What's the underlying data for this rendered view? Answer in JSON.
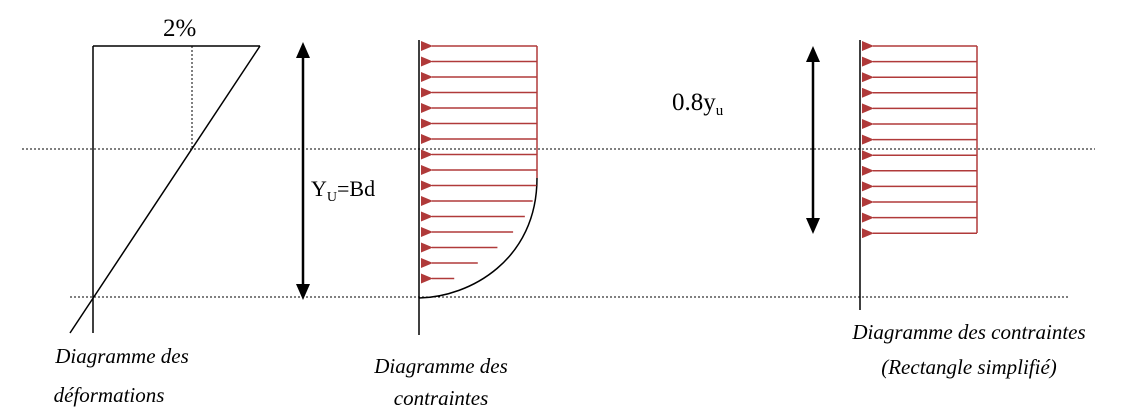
{
  "strain_diagram": {
    "top_label": "2%",
    "caption_line1": "Diagramme des",
    "caption_line2": "déformations"
  },
  "depth_arrow": {
    "label_main": "Y",
    "label_sub": "U",
    "label_rest": "=Bd"
  },
  "stress_diagram": {
    "caption_line1": "Diagramme des",
    "caption_line2": "contraintes"
  },
  "rect_diagram": {
    "label_main": "0.8y",
    "label_sub": "u",
    "caption_line1": "Diagramme des contraintes",
    "caption_line2": "(Rectangle simplifié)"
  },
  "colors": {
    "arrow": "#b03a3a",
    "line": "#000000"
  }
}
